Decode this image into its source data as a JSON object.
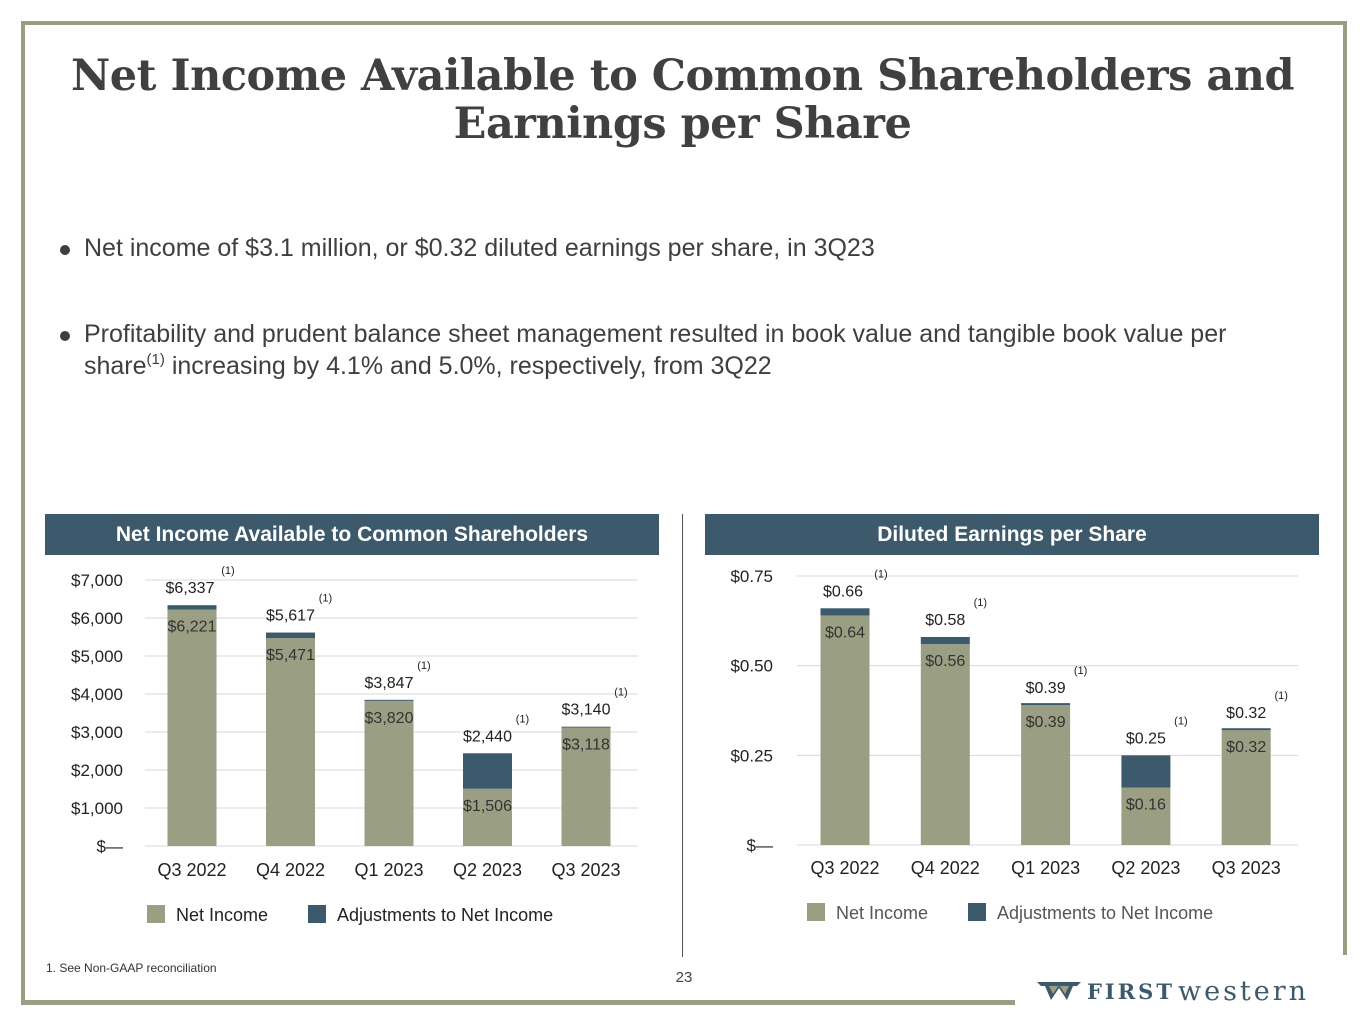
{
  "title": "Net Income Available to Common Shareholders and Earnings per Share",
  "bullets": {
    "b1": "Net income of $3.1 million, or $0.32 diluted earnings per share, in 3Q23",
    "b2_part1": "Profitability and prudent balance sheet management resulted in book value and tangible book value per share",
    "b2_sup": "(1)",
    "b2_part2": " increasing by 4.1% and 5.0%, respectively, from 3Q22"
  },
  "footnote": "1.   See Non-GAAP reconciliation",
  "page_number": "23",
  "logo": {
    "first": "FIRST",
    "western": "western"
  },
  "colors": {
    "net_income": "#9a9e83",
    "adjustments": "#3d5a6c",
    "header": "#3d5a6c"
  },
  "chart_data": [
    {
      "type": "bar",
      "stacked": true,
      "title": "Net Income Available to Common Shareholders",
      "categories": [
        "Q3 2022",
        "Q4 2022",
        "Q1 2023",
        "Q2 2023",
        "Q3 2023"
      ],
      "series": [
        {
          "name": "Net Income",
          "values": [
            6221,
            5471,
            3820,
            1506,
            3118
          ],
          "labels": [
            "$6,221",
            "$5,471",
            "$3,820",
            "$1,506",
            "$3,118"
          ]
        },
        {
          "name": "Adjustments to Net Income",
          "values": [
            116,
            146,
            27,
            934,
            22
          ]
        }
      ],
      "totals": [
        6337,
        5617,
        3847,
        2440,
        3140
      ],
      "total_labels": [
        "$6,337",
        "$5,617",
        "$3,847",
        "$2,440",
        "$3,140"
      ],
      "total_note": "(1)",
      "yticks": [
        0,
        1000,
        2000,
        3000,
        4000,
        5000,
        6000,
        7000
      ],
      "ytick_labels": [
        "$—",
        "$1,000",
        "$2,000",
        "$3,000",
        "$4,000",
        "$5,000",
        "$6,000",
        "$7,000"
      ],
      "ylim": [
        0,
        7000
      ],
      "legend": [
        "Net Income",
        "Adjustments to Net Income"
      ],
      "legend_position": "bottom"
    },
    {
      "type": "bar",
      "stacked": true,
      "title": "Diluted Earnings per Share",
      "categories": [
        "Q3 2022",
        "Q4 2022",
        "Q1 2023",
        "Q2 2023",
        "Q3 2023"
      ],
      "series": [
        {
          "name": "Net Income",
          "values": [
            0.64,
            0.56,
            0.39,
            0.16,
            0.32
          ],
          "labels": [
            "$0.64",
            "$0.56",
            "$0.39",
            "$0.16",
            "$0.32"
          ]
        },
        {
          "name": "Adjustments to Net Income",
          "values": [
            0.02,
            0.02,
            0.0,
            0.09,
            0.0
          ]
        }
      ],
      "totals": [
        0.66,
        0.58,
        0.39,
        0.25,
        0.32
      ],
      "total_labels": [
        "$0.66",
        "$0.58",
        "$0.39",
        "$0.25",
        "$0.32"
      ],
      "total_note": "(1)",
      "yticks": [
        0,
        0.25,
        0.5,
        0.75
      ],
      "ytick_labels": [
        "$—",
        "$0.25",
        "$0.50",
        "$0.75"
      ],
      "ylim": [
        0,
        0.75
      ],
      "legend": [
        "Net Income",
        "Adjustments to Net Income"
      ],
      "legend_position": "bottom"
    }
  ]
}
